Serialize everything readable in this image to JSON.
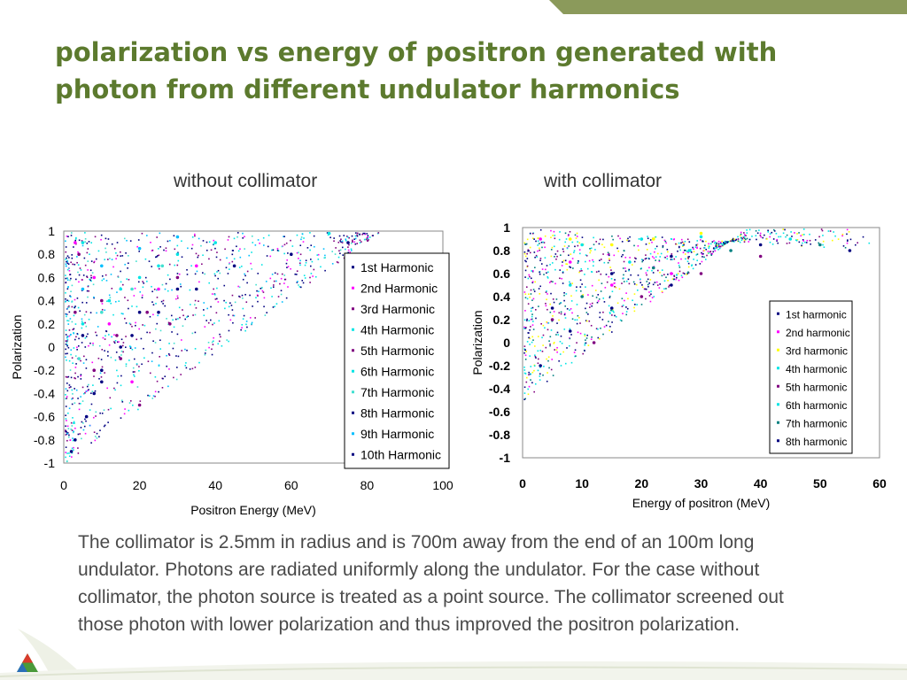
{
  "slide": {
    "title": "polarization vs energy of positron generated with photon from different undulator harmonics",
    "caption": "The collimator is 2.5mm in radius and is 700m away from the end of an 100m long undulator.  Photons are radiated uniformly along the undulator.  For the case without collimator, the photon source is treated as a point source.  The collimator screened out those photon with lower polarization and thus improved the positron polarization.",
    "title_color": "#5c7a2e",
    "accent_color": "#8b9a5b"
  },
  "chart_data": [
    {
      "type": "scatter",
      "title": "without collimator",
      "xlabel": "Positron Energy (MeV)",
      "ylabel": "Polarization",
      "xlim": [
        0,
        100
      ],
      "ylim": [
        -1,
        1
      ],
      "xticks": [
        "0",
        "20",
        "40",
        "60",
        "80",
        "100"
      ],
      "yticks": [
        "1",
        "0.8",
        "0.6",
        "0.4",
        "0.2",
        "0",
        "-0.2",
        "-0.4",
        "-0.6",
        "-0.8",
        "-1"
      ],
      "legend_position": "right",
      "grid": false,
      "series": [
        {
          "name": "1st Harmonic",
          "color": "#000080",
          "points": [
            [
              5,
              0.1
            ],
            [
              10,
              -0.2
            ],
            [
              20,
              0.3
            ],
            [
              30,
              0.5
            ],
            [
              45,
              0.7
            ],
            [
              60,
              0.8
            ],
            [
              75,
              0.9
            ]
          ]
        },
        {
          "name": "2nd Harmonic",
          "color": "#ff00ff",
          "points": [
            [
              3,
              0.9
            ],
            [
              8,
              0.6
            ],
            [
              12,
              0.2
            ],
            [
              18,
              -0.3
            ],
            [
              25,
              0.5
            ],
            [
              35,
              0.7
            ]
          ]
        },
        {
          "name": "3rd Harmonic",
          "color": "#800080",
          "points": [
            [
              4,
              0.8
            ],
            [
              10,
              0.4
            ],
            [
              15,
              -0.1
            ],
            [
              22,
              0.3
            ],
            [
              30,
              0.6
            ]
          ]
        },
        {
          "name": "4th Harmonic",
          "color": "#00e5e5",
          "points": [
            [
              5,
              0.9
            ],
            [
              15,
              0.5
            ],
            [
              25,
              0.7
            ],
            [
              40,
              0.9
            ],
            [
              70,
              0.98
            ]
          ]
        },
        {
          "name": "5th Harmonic",
          "color": "#800080",
          "points": [
            [
              3,
              0.3
            ],
            [
              8,
              -0.2
            ],
            [
              14,
              0.1
            ],
            [
              20,
              -0.5
            ],
            [
              28,
              0.2
            ]
          ]
        },
        {
          "name": "6th Harmonic",
          "color": "#00e5e5",
          "points": [
            [
              5,
              0.2
            ],
            [
              12,
              0.4
            ],
            [
              20,
              0.6
            ],
            [
              30,
              0.8
            ]
          ]
        },
        {
          "name": "7th Harmonic",
          "color": "#40e0d0",
          "points": [
            [
              4,
              -0.1
            ],
            [
              10,
              0.3
            ],
            [
              18,
              0.5
            ],
            [
              26,
              0.7
            ]
          ]
        },
        {
          "name": "8th Harmonic",
          "color": "#000080",
          "points": [
            [
              3,
              -0.8
            ],
            [
              8,
              -0.4
            ],
            [
              15,
              0.0
            ],
            [
              25,
              0.3
            ],
            [
              35,
              0.5
            ]
          ]
        },
        {
          "name": "9th Harmonic",
          "color": "#00bfff",
          "points": [
            [
              5,
              0.5
            ],
            [
              10,
              0.7
            ],
            [
              20,
              0.85
            ],
            [
              30,
              0.95
            ]
          ]
        },
        {
          "name": "10th Harmonic",
          "color": "#000080",
          "points": [
            [
              2,
              -0.9
            ],
            [
              6,
              -0.6
            ],
            [
              10,
              -0.3
            ],
            [
              18,
              0.1
            ]
          ]
        }
      ]
    },
    {
      "type": "scatter",
      "title": "with collimator",
      "xlabel": "Energy of positron (MeV)",
      "ylabel": "Polarization",
      "xlim": [
        0,
        60
      ],
      "ylim": [
        -1,
        1
      ],
      "xticks": [
        "0",
        "10",
        "20",
        "30",
        "40",
        "50",
        "60"
      ],
      "yticks": [
        "1",
        "0.8",
        "0.6",
        "0.4",
        "0.2",
        "0",
        "-0.2",
        "-0.4",
        "-0.6",
        "-0.8",
        "-1"
      ],
      "legend_position": "right",
      "grid": false,
      "series": [
        {
          "name": "1st harmonic",
          "color": "#000080",
          "points": [
            [
              5,
              0.3
            ],
            [
              15,
              0.6
            ],
            [
              25,
              0.75
            ],
            [
              40,
              0.85
            ],
            [
              55,
              0.8
            ]
          ]
        },
        {
          "name": "2nd harmonic",
          "color": "#ff00ff",
          "points": [
            [
              3,
              0.9
            ],
            [
              8,
              0.7
            ],
            [
              15,
              0.5
            ],
            [
              25,
              0.6
            ]
          ]
        },
        {
          "name": "3rd harmonic",
          "color": "#ffff00",
          "points": [
            [
              8,
              0.9
            ],
            [
              15,
              0.85
            ],
            [
              22,
              0.9
            ],
            [
              30,
              0.95
            ]
          ]
        },
        {
          "name": "4th harmonic",
          "color": "#00e5e5",
          "points": [
            [
              10,
              0.85
            ],
            [
              20,
              0.9
            ],
            [
              30,
              0.92
            ],
            [
              45,
              0.9
            ]
          ]
        },
        {
          "name": "5th harmonic",
          "color": "#800080",
          "points": [
            [
              5,
              0.2
            ],
            [
              12,
              0.0
            ],
            [
              20,
              0.4
            ],
            [
              30,
              0.6
            ],
            [
              40,
              0.75
            ]
          ]
        },
        {
          "name": "6th harmonic",
          "color": "#00e5e5",
          "points": [
            [
              8,
              0.5
            ],
            [
              18,
              0.7
            ],
            [
              28,
              0.8
            ]
          ]
        },
        {
          "name": "7th harmonic",
          "color": "#008080",
          "points": [
            [
              10,
              0.4
            ],
            [
              22,
              0.65
            ],
            [
              35,
              0.8
            ],
            [
              50,
              0.85
            ]
          ]
        },
        {
          "name": "8th harmonic",
          "color": "#000080",
          "points": [
            [
              3,
              -0.2
            ],
            [
              8,
              0.1
            ],
            [
              15,
              0.3
            ],
            [
              25,
              0.5
            ]
          ]
        }
      ]
    }
  ]
}
